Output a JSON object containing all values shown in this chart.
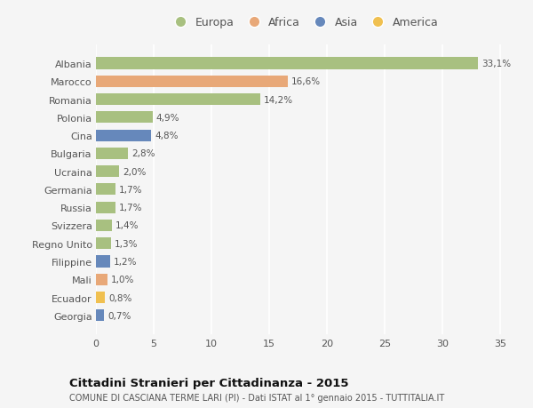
{
  "countries": [
    "Albania",
    "Marocco",
    "Romania",
    "Polonia",
    "Cina",
    "Bulgaria",
    "Ucraina",
    "Germania",
    "Russia",
    "Svizzera",
    "Regno Unito",
    "Filippine",
    "Mali",
    "Ecuador",
    "Georgia"
  ],
  "values": [
    33.1,
    16.6,
    14.2,
    4.9,
    4.8,
    2.8,
    2.0,
    1.7,
    1.7,
    1.4,
    1.3,
    1.2,
    1.0,
    0.8,
    0.7
  ],
  "labels": [
    "33,1%",
    "16,6%",
    "14,2%",
    "4,9%",
    "4,8%",
    "2,8%",
    "2,0%",
    "1,7%",
    "1,7%",
    "1,4%",
    "1,3%",
    "1,2%",
    "1,0%",
    "0,8%",
    "0,7%"
  ],
  "continents": [
    "Europa",
    "Africa",
    "Europa",
    "Europa",
    "Asia",
    "Europa",
    "Europa",
    "Europa",
    "Europa",
    "Europa",
    "Europa",
    "Asia",
    "Africa",
    "America",
    "Asia"
  ],
  "continent_colors": {
    "Europa": "#a8c080",
    "Africa": "#e8a878",
    "Asia": "#6688bb",
    "America": "#f0c050"
  },
  "legend_order": [
    "Europa",
    "Africa",
    "Asia",
    "America"
  ],
  "title": "Cittadini Stranieri per Cittadinanza - 2015",
  "subtitle": "COMUNE DI CASCIANA TERME LARI (PI) - Dati ISTAT al 1° gennaio 2015 - TUTTITALIA.IT",
  "xlim": [
    0,
    36
  ],
  "xticks": [
    0,
    5,
    10,
    15,
    20,
    25,
    30,
    35
  ],
  "background_color": "#f5f5f5",
  "grid_color": "#ffffff",
  "bar_height": 0.65
}
